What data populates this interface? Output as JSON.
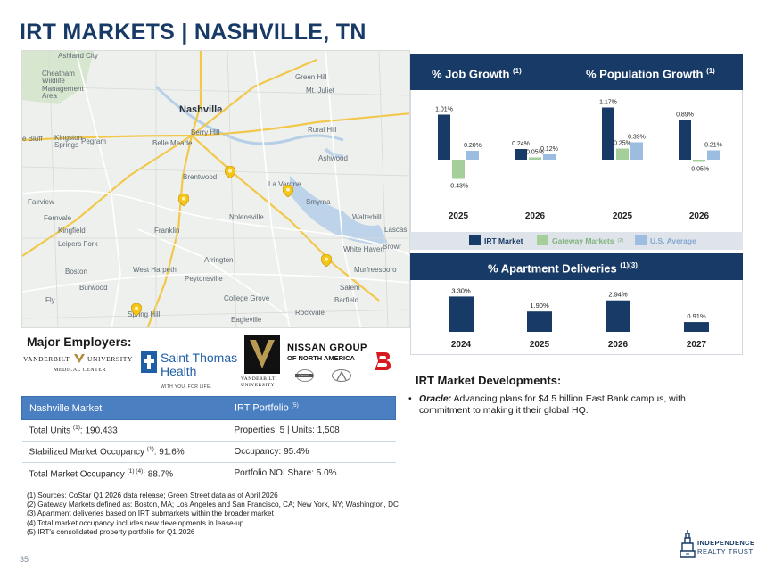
{
  "title": "IRT MARKETS | NASHVILLE, TN",
  "map": {
    "labels": [
      {
        "text": "Ashland City",
        "size": "small"
      },
      {
        "text": "Cheatham\nWildlife\nManagement\nArea",
        "size": "small"
      },
      {
        "text": "Green Hill",
        "size": "small"
      },
      {
        "text": "Mt. Juliet",
        "size": "small"
      },
      {
        "text": "Nashville",
        "size": "big"
      },
      {
        "text": "Berry Hill",
        "size": "small"
      },
      {
        "text": "Rural Hill",
        "size": "small"
      },
      {
        "text": "Belle Meade",
        "size": "small"
      },
      {
        "text": "Kingston\nSprings",
        "size": "small"
      },
      {
        "text": "Pegram",
        "size": "small"
      },
      {
        "text": "e Bluff",
        "size": "small"
      },
      {
        "text": "Ashwood",
        "size": "small"
      },
      {
        "text": "Brentwood",
        "size": "small"
      },
      {
        "text": "La Vergne",
        "size": "small"
      },
      {
        "text": "Smyrna",
        "size": "small"
      },
      {
        "text": "Fairview",
        "size": "small"
      },
      {
        "text": "Fernvale",
        "size": "small"
      },
      {
        "text": "Nolensville",
        "size": "small"
      },
      {
        "text": "Walterhill",
        "size": "small"
      },
      {
        "text": "Kingfield",
        "size": "small"
      },
      {
        "text": "Franklin",
        "size": "small"
      },
      {
        "text": "Lascas",
        "size": "small"
      },
      {
        "text": "Leipers Fork",
        "size": "small"
      },
      {
        "text": "White Haven",
        "size": "small"
      },
      {
        "text": "Arrington",
        "size": "small"
      },
      {
        "text": "Browr",
        "size": "small"
      },
      {
        "text": "Boston",
        "size": "small"
      },
      {
        "text": "West Harpeth",
        "size": "small"
      },
      {
        "text": "Murfreesboro",
        "size": "small"
      },
      {
        "text": "Peytonsville",
        "size": "small"
      },
      {
        "text": "Burwood",
        "size": "small"
      },
      {
        "text": "Salem",
        "size": "small"
      },
      {
        "text": "Fly",
        "size": "small"
      },
      {
        "text": "College Grove",
        "size": "small"
      },
      {
        "text": "Barfield",
        "size": "small"
      },
      {
        "text": "Rockvale",
        "size": "small"
      },
      {
        "text": "Spring Hill",
        "size": "small"
      },
      {
        "text": "Eagleville",
        "size": "small"
      }
    ]
  },
  "employers": {
    "title": "Major Employers:",
    "vumc": {
      "line1": "VANDERBILT",
      "line2": "UNIVERSITY",
      "line3": "MEDICAL CENTER"
    },
    "saint_thomas": {
      "line1": "Saint Thomas",
      "line2": "Health",
      "tagline": "WITH YOU. FOR LIFE."
    },
    "vanderbilt": {
      "line1": "VANDERBILT",
      "line2": "UNIVERSITY"
    },
    "nissan": {
      "line1": "NISSAN GROUP",
      "line2": "OF NORTH AMERICA",
      "badge": "NISSAN"
    }
  },
  "table": {
    "header_left": "Nashville Market",
    "header_right": "IRT Portfolio",
    "header_right_sup": "(5)",
    "rows": [
      {
        "left_label": "Total Units",
        "left_sup": "(1)",
        "left_value": ": 190,433",
        "right": "Properties: 5 | Units: 1,508"
      },
      {
        "left_label": "Stabilized Market Occupancy",
        "left_sup": "(1)",
        "left_value": ": 91.6%",
        "right": "Occupancy: 95.4%"
      },
      {
        "left_label": "Total Market Occupancy",
        "left_sup": "(1) (4)",
        "left_value": ": 88.7%",
        "right": "Portfolio NOI Share: 5.0%"
      }
    ]
  },
  "footnotes": [
    "(1)  Sources: CoStar Q1 2026 data release; Green Street data as of April 2026",
    "(2)  Gateway Markets defined as: Boston, MA; Los Angeles and San Francisco, CA; New York, NY; Washington, DC",
    "(3)  Apartment deliveries based on IRT submarkets within the broader market",
    "(4)  Total market occupancy includes new developments in lease-up",
    "(5)  IRT's consolidated property portfolio for Q1 2026"
  ],
  "page_number": "35",
  "irt_logo": {
    "line1": "INDEPENDENCE",
    "line2": "REALTY TRUST"
  },
  "colors": {
    "navy": "#173a66",
    "irt_market": "#173a66",
    "gateway": "#a4cf9b",
    "us_average": "#9dbde0",
    "table_header": "#4a7fc1"
  },
  "headers": {
    "job_growth": "% Job Growth",
    "job_growth_sup": "(1)",
    "population_growth": "% Population Growth",
    "population_growth_sup": "(1)",
    "deliveries": "% Apartment Deliveries",
    "deliveries_sup": "(1)(3)"
  },
  "legend": {
    "irt": "IRT Market",
    "gateway": "Gateway Markets",
    "gateway_sup": "(2)",
    "us": "U.S. Average"
  },
  "chart_data": [
    {
      "type": "bar",
      "title": "% Job Growth",
      "categories": [
        "2025",
        "2026"
      ],
      "series": [
        {
          "name": "IRT Market",
          "values": [
            1.01,
            0.24
          ],
          "labels": [
            "1.01%",
            "0.24%"
          ]
        },
        {
          "name": "Gateway Markets",
          "values": [
            -0.43,
            0.05
          ],
          "labels": [
            "-0.43%",
            "0.05%"
          ]
        },
        {
          "name": "U.S. Average",
          "values": [
            0.2,
            0.12
          ],
          "labels": [
            "0.20%",
            "0.12%"
          ]
        }
      ]
    },
    {
      "type": "bar",
      "title": "% Population Growth",
      "categories": [
        "2025",
        "2026"
      ],
      "series": [
        {
          "name": "IRT Market",
          "values": [
            1.17,
            0.89
          ],
          "labels": [
            "1.17%",
            "0.89%"
          ]
        },
        {
          "name": "Gateway Markets",
          "values": [
            0.25,
            -0.05
          ],
          "labels": [
            "0.25%",
            "-0.05%"
          ]
        },
        {
          "name": "U.S. Average",
          "values": [
            0.39,
            0.21
          ],
          "labels": [
            "0.39%",
            "0.21%"
          ]
        }
      ]
    },
    {
      "type": "bar",
      "title": "% Apartment Deliveries",
      "categories": [
        "2024",
        "2025",
        "2026",
        "2027"
      ],
      "series": [
        {
          "name": "IRT Market",
          "values": [
            3.3,
            1.9,
            2.94,
            0.91
          ],
          "labels": [
            "3.30%",
            "1.90%",
            "2.94%",
            "0.91%"
          ]
        }
      ]
    }
  ],
  "developments": {
    "title": "IRT Market Developments:",
    "items": [
      {
        "bullet": "•",
        "lead": "Oracle:",
        "text": " Advancing plans for $4.5 billion East Bank campus, with commitment to making it their global HQ."
      }
    ]
  }
}
